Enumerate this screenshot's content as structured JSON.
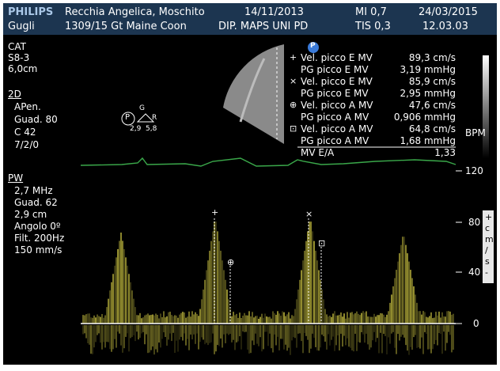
{
  "header": {
    "brand": "PHILIPS",
    "patient": "Recchia Angelica, Moschito",
    "exam_date": "14/11/2013",
    "mi": "MI 0,7",
    "current_date": "24/03/2015",
    "operator": "Gugli",
    "patient_id": "1309/15 Gt Maine Coon",
    "institution": "DIP. MAPS UNI PD",
    "tis": "TIS 0,3",
    "time": "12.03.03"
  },
  "left_panel": {
    "preset": "CAT",
    "probe": "S8-3",
    "depth": " 6,0cm",
    "mode_2d": "2D",
    "pen": "APen.",
    "gain_2d": "Guad. 80",
    "compression": "C 42",
    "persistence": "7/2/0",
    "mode_pw": "PW",
    "freq": "2,7 MHz",
    "gain_pw": "Guad. 62",
    "gate": "2,9 cm",
    "angle": "Angolo 0º",
    "filter": "Filt. 200Hz",
    "sweep": "150 mm/s"
  },
  "thumbnail": {
    "p_label": "P",
    "g_label": "G",
    "r_label": "R",
    "vals": "2,9  5,8"
  },
  "measurements": {
    "p_badge": "P",
    "rows": [
      {
        "symbol": "+",
        "label": "Vel. picco E MV",
        "value": "89,3 cm/s"
      },
      {
        "symbol": "",
        "label": "PG picco E MV",
        "value": "3,19 mmHg"
      },
      {
        "symbol": "×",
        "label": "Vel. picco E MV",
        "value": "85,9 cm/s"
      },
      {
        "symbol": "",
        "label": "PG picco E MV",
        "value": "2,95 mmHg"
      },
      {
        "symbol": "⊕",
        "label": "Vel. picco A MV",
        "value": "47,6 cm/s"
      },
      {
        "symbol": "",
        "label": "PG picco A MV",
        "value": "0,906 mmHg"
      },
      {
        "symbol": "⊡",
        "label": "Vel. picco A MV",
        "value": "64,8 cm/s"
      },
      {
        "symbol": "",
        "label": "PG picco A MV",
        "value": "1,68 mmHg"
      },
      {
        "symbol": "",
        "label": "MV E/A",
        "value": "1,33"
      }
    ]
  },
  "scale": {
    "bpm": "BPM",
    "ticks": [
      "120",
      "80",
      "40",
      "0"
    ],
    "unit_letters": [
      "+",
      "c",
      "m",
      "/",
      "s",
      "-"
    ]
  },
  "cursor_markers": [
    "+",
    "⊕",
    "×",
    "⊡"
  ],
  "colors": {
    "header_bg": "#1c3550",
    "doppler": "#c8c040",
    "ecg": "#3aa84a",
    "text": "#ffffff"
  }
}
